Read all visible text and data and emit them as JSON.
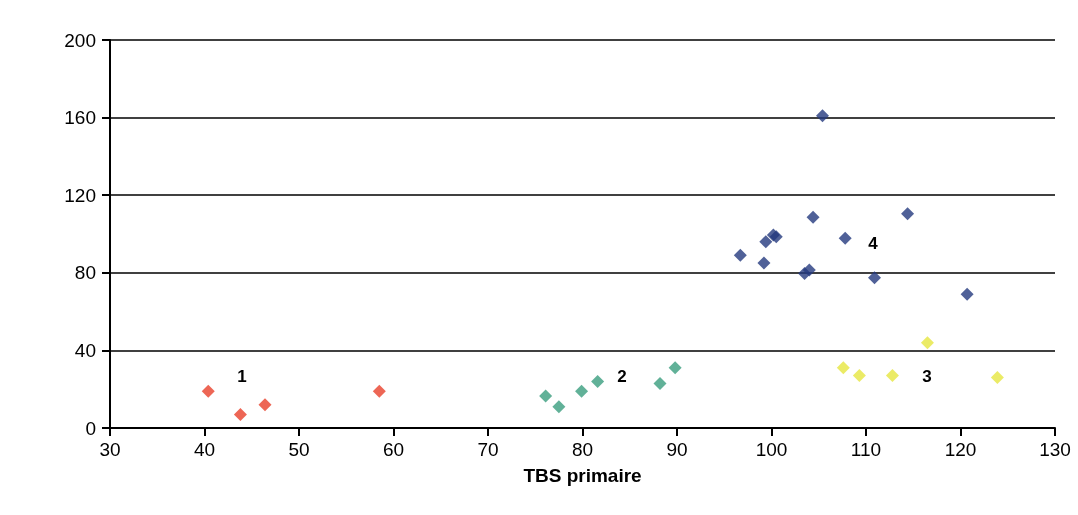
{
  "chart_data": {
    "type": "scatter",
    "xlabel": "TBS primaire",
    "marker": "diamond",
    "grid": "y",
    "xlim": [
      30,
      130
    ],
    "xticks": [
      30,
      40,
      50,
      60,
      70,
      80,
      90,
      100,
      110,
      120,
      130
    ],
    "ylim": [
      0,
      200
    ],
    "yticks": [
      0,
      40,
      80,
      120,
      160,
      200
    ],
    "series": [
      {
        "color": "#e8402a",
        "x": [
          40.4,
          43.8,
          46.4,
          58.5
        ],
        "values": [
          19,
          7,
          12,
          19
        ]
      },
      {
        "color": "#3a9e7e",
        "x": [
          76.1,
          77.5,
          79.9,
          81.6,
          88.2,
          89.8
        ],
        "values": [
          16.5,
          11,
          19,
          24,
          23,
          31
        ]
      },
      {
        "color": "#e6e640",
        "x": [
          107.6,
          109.3,
          112.8,
          116.5,
          123.9
        ],
        "values": [
          31,
          27,
          27,
          44,
          26
        ]
      },
      {
        "color": "#243a7e",
        "x": [
          105.4,
          96.7,
          99.2,
          99.4,
          100.2,
          100.5,
          104.4,
          107.8,
          114.4,
          103.5,
          104,
          110.9,
          120.7
        ],
        "values": [
          161,
          89,
          85,
          96,
          99.5,
          98.6,
          108.6,
          97.8,
          110.5,
          79.7,
          81.4,
          77.5,
          69
        ]
      }
    ],
    "annotations": [
      "1",
      "2",
      "3",
      "4"
    ]
  }
}
